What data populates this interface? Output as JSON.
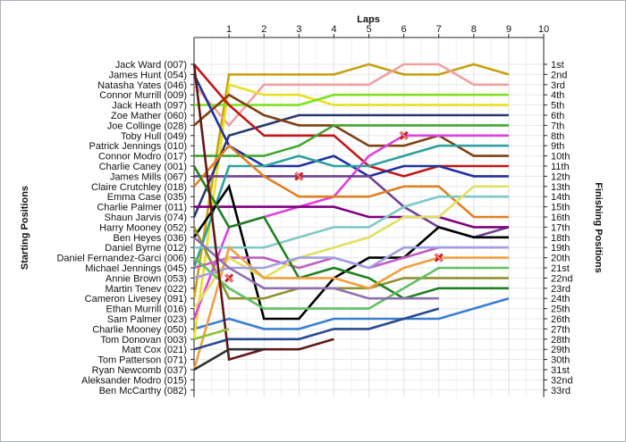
{
  "chart_data": {
    "type": "line",
    "title": "",
    "xlabel": "Laps",
    "ylabel": "Starting Positions",
    "ylabel_right": "Finishing Positions",
    "x_ticks": [
      1,
      2,
      3,
      4,
      5,
      6,
      7,
      8,
      9,
      10
    ],
    "xlim": [
      0,
      10
    ],
    "ylim": [
      1,
      33
    ],
    "y_inverted": true,
    "grid": true,
    "left_labels": [
      "Jack Ward (007)",
      "James Hunt (054)",
      "Natasha Yates (046)",
      "Connor Murrill (009)",
      "Jack Heath (097)",
      "Zoe Mather (060)",
      "Joe Collinge (028)",
      "Toby Hull (049)",
      "Patrick Jennings (010)",
      "Connor Modro (017)",
      "Charlie Caney (001)",
      "James Mills (067)",
      "Claire Crutchley (018)",
      "Emma Case (035)",
      "Charlie Palmer (011)",
      "Shaun Jarvis (074)",
      "Harry Mooney (052)",
      "Ben Heyes (036)",
      "Daniel Byrne (012)",
      "Daniel Fernandez-Garci (006)",
      "Michael Jennings (045)",
      "Annie Brown (053)",
      "Martin Tenev (022)",
      "Cameron Livesey (091)",
      "Ethan Murrill (016)",
      "Sam Palmer (023)",
      "Charlie Mooney (050)",
      "Tom Donovan (003)",
      "Matt Cox (021)",
      "Tom Patterson (071)",
      "Ryan Newcomb (037)",
      "Aleksander Modro (015)",
      "Ben McCarthy (082)"
    ],
    "right_labels": [
      "1st",
      "2nd",
      "3rd",
      "4th",
      "5th",
      "6th",
      "7th",
      "8th",
      "9th",
      "10th",
      "11th",
      "12th",
      "13th",
      "14th",
      "15th",
      "16th",
      "17th",
      "18th",
      "19th",
      "20th",
      "21st",
      "22nd",
      "23rd",
      "24th",
      "25th",
      "26th",
      "27th",
      "28th",
      "29th",
      "30th",
      "31st",
      "32nd",
      "33rd"
    ],
    "series": [
      {
        "color": "#3a7fd0",
        "values": [
          27,
          26,
          27,
          27,
          26,
          26,
          26,
          26,
          25,
          24
        ]
      },
      {
        "color": "#c8a010",
        "values": [
          24,
          2,
          2,
          2,
          2,
          1,
          2,
          2,
          1,
          2
        ]
      },
      {
        "color": "#f0a0a0",
        "values": [
          3,
          7,
          3,
          3,
          3,
          3,
          1,
          1,
          3,
          3
        ]
      },
      {
        "color": "#e8e020",
        "values": [
          28,
          3,
          4,
          4,
          5,
          5,
          5,
          5,
          5,
          5
        ]
      },
      {
        "color": "#80e020",
        "values": [
          5,
          5,
          5,
          5,
          4,
          4,
          4,
          4,
          4,
          4
        ]
      },
      {
        "color": "#283870",
        "values": [
          16,
          8,
          7,
          6,
          6,
          6,
          6,
          6,
          6,
          6
        ]
      },
      {
        "color": "#804010",
        "values": [
          7,
          4,
          6,
          7,
          7,
          9,
          9,
          8,
          10,
          10
        ]
      },
      {
        "color": "#c01818",
        "values": [
          1,
          5,
          8,
          8,
          8,
          11,
          12,
          11,
          11,
          11
        ]
      },
      {
        "color": "#2030a0",
        "values": [
          2,
          9,
          11,
          11,
          10,
          12,
          11,
          11,
          12,
          12
        ]
      },
      {
        "color": "#40a830",
        "values": [
          10,
          10,
          10,
          9,
          7,
          7,
          7,
          7,
          7,
          7
        ]
      },
      {
        "color": "#e040e0",
        "values": [
          26,
          17,
          16,
          15,
          14,
          10,
          8,
          8,
          8,
          8
        ]
      },
      {
        "color": "#704090",
        "values": [
          12,
          12,
          12,
          12,
          12,
          12,
          15,
          17,
          18,
          17
        ]
      },
      {
        "color": "#30a0a0",
        "values": [
          21,
          11,
          11,
          10,
          11,
          11,
          10,
          9,
          9,
          9
        ]
      },
      {
        "color": "#e08020",
        "values": [
          13,
          9,
          12,
          14,
          14,
          14,
          13,
          13,
          16,
          16
        ]
      },
      {
        "color": "#800080",
        "values": [
          15,
          15,
          15,
          15,
          15,
          16,
          16,
          16,
          17,
          17
        ]
      },
      {
        "color": "#000000",
        "values": [
          18,
          13,
          26,
          26,
          22,
          20,
          20,
          17,
          18,
          18
        ]
      },
      {
        "color": "#909030",
        "values": [
          17,
          24,
          24,
          23,
          23,
          23,
          22,
          22,
          22,
          22
        ]
      },
      {
        "color": "#80c8c8",
        "values": [
          19,
          19,
          19,
          18,
          17,
          17,
          15,
          14,
          14,
          14
        ]
      },
      {
        "color": "#c060c0",
        "values": [
          21,
          20,
          20,
          21,
          20,
          21,
          20,
          19,
          19,
          19
        ]
      },
      {
        "color": "#e0e060",
        "values": [
          25,
          20,
          22,
          20,
          19,
          18,
          16,
          16,
          13,
          13
        ]
      },
      {
        "color": "#208020",
        "values": [
          11,
          17,
          16,
          22,
          21,
          22,
          24,
          23,
          23,
          23
        ]
      },
      {
        "color": "#f0a040",
        "values": [
          31,
          19,
          22,
          22,
          22,
          23,
          21,
          20,
          20,
          20
        ]
      },
      {
        "color": "#60c060",
        "values": [
          20,
          23,
          25,
          25,
          25,
          25,
          23,
          21,
          21,
          21
        ]
      },
      {
        "color": "#a0a0e0",
        "values": [
          22,
          21,
          21,
          20,
          20,
          21,
          19,
          19,
          19,
          19
        ]
      },
      {
        "color": "#9070b0",
        "values": [
          18,
          21,
          23,
          23,
          23,
          24,
          24,
          24
        ]
      },
      {
        "color": "#2a4a90",
        "values": [
          29,
          28,
          28,
          28,
          27,
          27,
          26,
          25
        ]
      },
      {
        "color": "#601818",
        "values": [
          1,
          30,
          29,
          29,
          28
        ]
      },
      {
        "color": "#303030",
        "values": [
          31,
          29,
          29
        ]
      },
      {
        "color": "#90c030",
        "values": [
          28,
          27
        ]
      }
    ],
    "markers": [
      {
        "lap": 3,
        "position": 12,
        "symbol": "x",
        "color": "#d02020"
      },
      {
        "lap": 6,
        "position": 8,
        "symbol": "x",
        "color": "#d02020"
      },
      {
        "lap": 7,
        "position": 20,
        "symbol": "x",
        "color": "#d02020"
      },
      {
        "lap": 1,
        "position": 22,
        "symbol": "x",
        "color": "#d02020"
      }
    ]
  }
}
